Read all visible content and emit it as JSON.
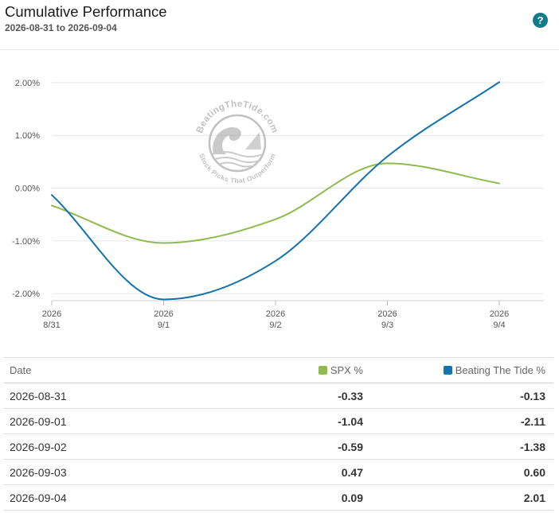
{
  "header": {
    "title": "Cumulative Performance",
    "date_range": "2026-08-31 to 2026-09-04",
    "help_label": "?"
  },
  "watermark": {
    "top_text": "BeatingTheTide.com",
    "bottom_text": "Stock Picks That Outperform"
  },
  "colors": {
    "spx": "#8fbb4d",
    "beating_the_tide": "#1273ad",
    "grid": "#e6e6e6",
    "help_icon": "#117a8b"
  },
  "chart_data": {
    "type": "line",
    "x": [
      "2026-08-31",
      "2026-09-01",
      "2026-09-02",
      "2026-09-03",
      "2026-09-04"
    ],
    "x_tick_labels": [
      {
        "year": "2026",
        "day": "8/31"
      },
      {
        "year": "2026",
        "day": "9/1"
      },
      {
        "year": "2026",
        "day": "9/2"
      },
      {
        "year": "2026",
        "day": "9/3"
      },
      {
        "year": "2026",
        "day": "9/4"
      }
    ],
    "y_tick_labels": [
      "2.00%",
      "1.00%",
      "0.00%",
      "-1.00%",
      "-2.00%"
    ],
    "y_ticks": [
      2,
      1,
      0,
      -1,
      -2
    ],
    "ylim": [
      -2.45,
      2.3
    ],
    "smooth": true,
    "grid": true,
    "series": [
      {
        "name": "SPX %",
        "color_key": "spx",
        "values": [
          -0.33,
          -1.04,
          -0.59,
          0.47,
          0.09
        ]
      },
      {
        "name": "Beating The Tide %",
        "color_key": "beating_the_tide",
        "values": [
          -0.13,
          -2.11,
          -1.38,
          0.6,
          2.01
        ]
      }
    ]
  },
  "table": {
    "headers": {
      "date": "Date",
      "spx": "SPX %",
      "bt": "Beating The Tide %"
    },
    "rows": [
      {
        "date": "2026-08-31",
        "spx": "-0.33",
        "bt": "-0.13"
      },
      {
        "date": "2026-09-01",
        "spx": "-1.04",
        "bt": "-2.11"
      },
      {
        "date": "2026-09-02",
        "spx": "-0.59",
        "bt": "-1.38"
      },
      {
        "date": "2026-09-03",
        "spx": "0.47",
        "bt": "0.60"
      },
      {
        "date": "2026-09-04",
        "spx": "0.09",
        "bt": "2.01"
      }
    ]
  }
}
